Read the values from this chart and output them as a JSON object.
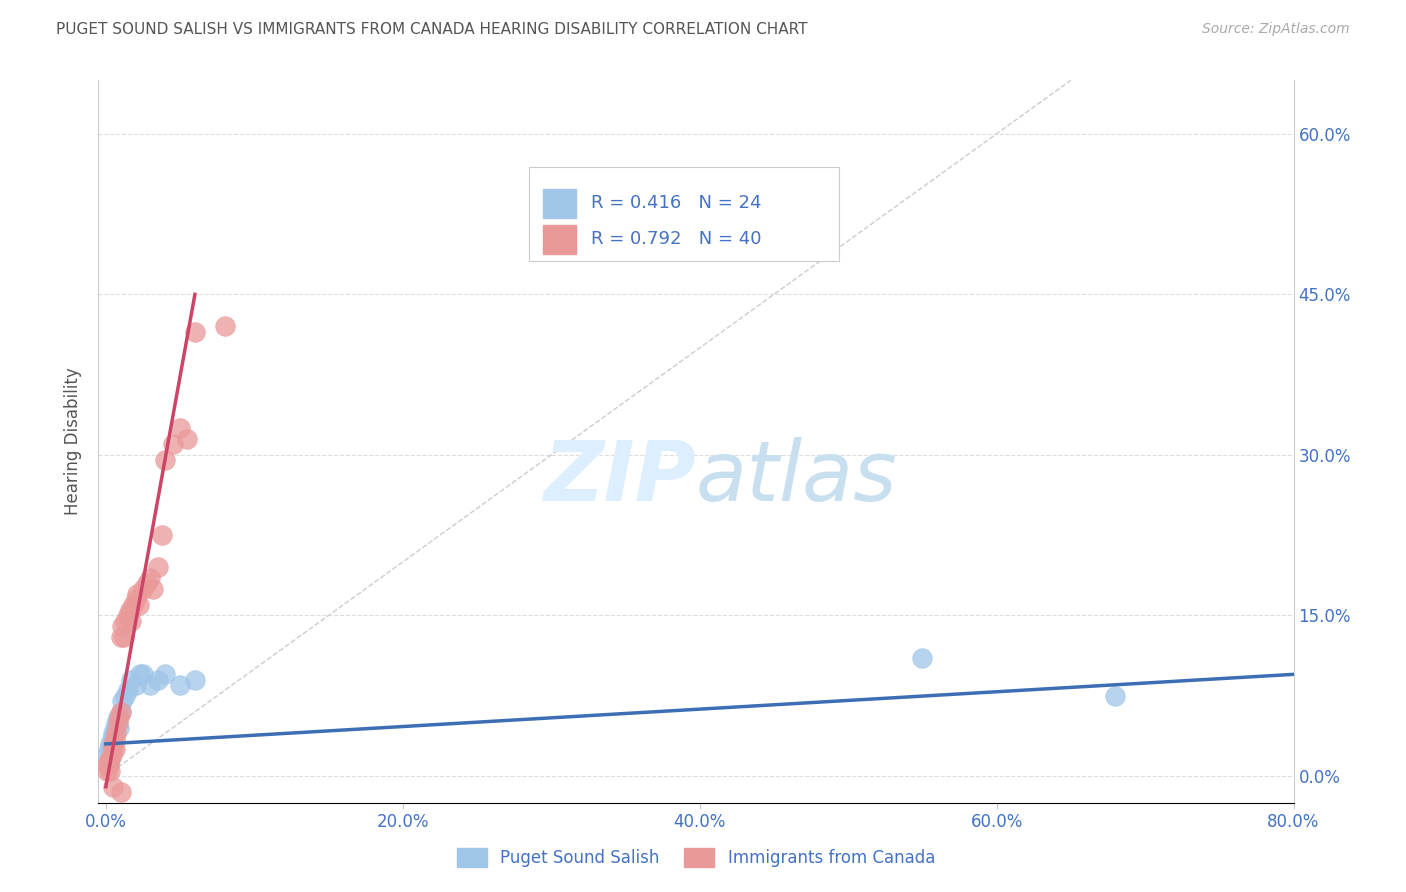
{
  "title": "PUGET SOUND SALISH VS IMMIGRANTS FROM CANADA HEARING DISABILITY CORRELATION CHART",
  "source": "Source: ZipAtlas.com",
  "xlabel_ticks": [
    "0.0%",
    "20.0%",
    "40.0%",
    "60.0%",
    "80.0%"
  ],
  "xlabel_tick_vals": [
    0.0,
    0.2,
    0.4,
    0.6,
    0.8
  ],
  "ylabel": "Hearing Disability",
  "ylabel_ticks": [
    "0.0%",
    "15.0%",
    "30.0%",
    "45.0%",
    "60.0%"
  ],
  "ylabel_tick_vals": [
    0.0,
    0.15,
    0.3,
    0.45,
    0.6
  ],
  "xlim": [
    -0.005,
    0.8
  ],
  "ylim": [
    -0.025,
    0.65
  ],
  "blue_scatter_x": [
    0.001,
    0.002,
    0.003,
    0.004,
    0.005,
    0.006,
    0.007,
    0.008,
    0.009,
    0.01,
    0.011,
    0.013,
    0.015,
    0.017,
    0.02,
    0.023,
    0.025,
    0.03,
    0.035,
    0.04,
    0.05,
    0.06,
    0.55,
    0.68
  ],
  "blue_scatter_y": [
    0.02,
    0.025,
    0.03,
    0.035,
    0.04,
    0.045,
    0.05,
    0.055,
    0.045,
    0.06,
    0.07,
    0.075,
    0.08,
    0.09,
    0.085,
    0.095,
    0.095,
    0.085,
    0.09,
    0.095,
    0.085,
    0.09,
    0.11,
    0.075
  ],
  "pink_scatter_x": [
    0.001,
    0.001,
    0.002,
    0.002,
    0.003,
    0.003,
    0.004,
    0.005,
    0.005,
    0.006,
    0.006,
    0.007,
    0.008,
    0.009,
    0.01,
    0.01,
    0.011,
    0.012,
    0.013,
    0.015,
    0.016,
    0.017,
    0.018,
    0.02,
    0.021,
    0.022,
    0.025,
    0.028,
    0.03,
    0.032,
    0.035,
    0.038,
    0.04,
    0.045,
    0.05,
    0.055,
    0.06,
    0.08,
    0.005,
    0.01
  ],
  "pink_scatter_y": [
    0.005,
    0.01,
    0.01,
    0.015,
    0.005,
    0.015,
    0.02,
    0.025,
    0.03,
    0.025,
    0.035,
    0.04,
    0.05,
    0.055,
    0.06,
    0.13,
    0.14,
    0.13,
    0.145,
    0.15,
    0.155,
    0.145,
    0.16,
    0.165,
    0.17,
    0.16,
    0.175,
    0.18,
    0.185,
    0.175,
    0.195,
    0.225,
    0.295,
    0.31,
    0.325,
    0.315,
    0.415,
    0.42,
    -0.01,
    -0.015
  ],
  "blue_R": 0.416,
  "blue_N": 24,
  "pink_R": 0.792,
  "pink_N": 40,
  "blue_line_x": [
    0.0,
    0.8
  ],
  "blue_line_y": [
    0.03,
    0.095
  ],
  "pink_line_x": [
    0.0,
    0.06
  ],
  "pink_line_y": [
    -0.01,
    0.45
  ],
  "diag_line_x": [
    0.0,
    0.65
  ],
  "diag_line_y": [
    0.0,
    0.65
  ],
  "blue_color": "#9fc5e8",
  "pink_color": "#ea9999",
  "blue_line_color": "#3d6eb4",
  "pink_line_color": "#cc4466",
  "diag_color": "#cccccc",
  "title_color": "#555555",
  "axis_label_color": "#4472c4",
  "legend_label_color": "#4472c4",
  "background_color": "#ffffff",
  "watermark_color": "#ddeeff"
}
